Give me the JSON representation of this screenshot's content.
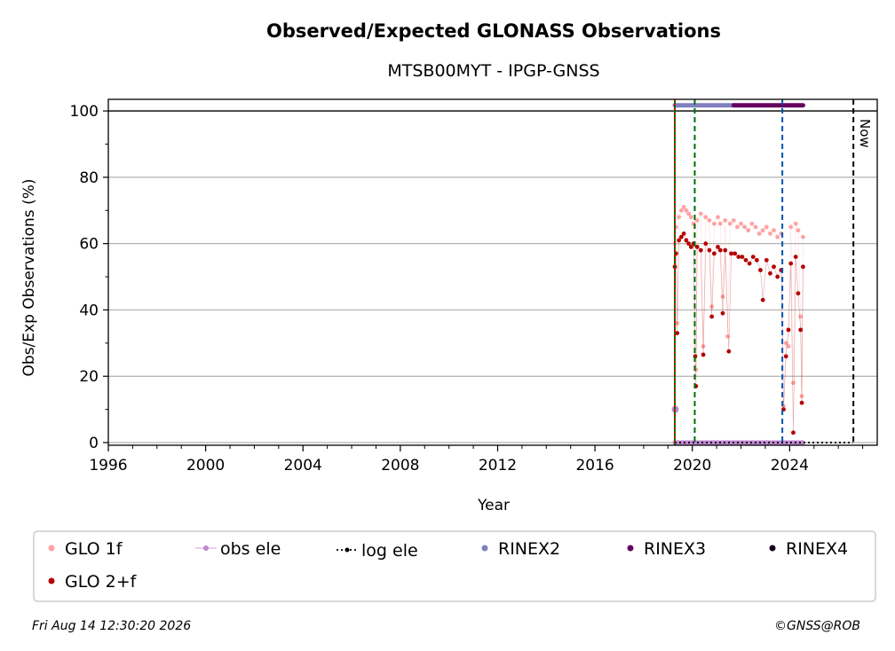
{
  "chart_data": {
    "type": "scatter",
    "title": "Observed/Expected GLONASS Observations",
    "subtitle": "MTSB00MYT - IPGP-GNSS",
    "xlabel": "Year",
    "ylabel": "Obs/Exp Observations (%)",
    "xlim": [
      1996,
      2027.6
    ],
    "ylim": [
      -0.8,
      103.5
    ],
    "x_ticks": [
      1996,
      2000,
      2004,
      2008,
      2012,
      2016,
      2020,
      2024
    ],
    "y_ticks": [
      0,
      20,
      40,
      60,
      80,
      100
    ],
    "grid": "horizontal",
    "legend_placement": "bottom",
    "series": [
      {
        "name": "GLO 1f",
        "color": "#ffa3a3",
        "marker": "dot",
        "points": [
          [
            2019.28,
            60
          ],
          [
            2019.33,
            65
          ],
          [
            2019.38,
            36
          ],
          [
            2019.45,
            68
          ],
          [
            2019.55,
            70
          ],
          [
            2019.65,
            71
          ],
          [
            2019.75,
            70
          ],
          [
            2019.85,
            69
          ],
          [
            2019.95,
            68
          ],
          [
            2020.05,
            66
          ],
          [
            2020.15,
            22
          ],
          [
            2020.2,
            67
          ],
          [
            2020.35,
            69
          ],
          [
            2020.45,
            29
          ],
          [
            2020.55,
            68
          ],
          [
            2020.7,
            67
          ],
          [
            2020.8,
            41
          ],
          [
            2020.9,
            66
          ],
          [
            2021.05,
            68
          ],
          [
            2021.15,
            66
          ],
          [
            2021.25,
            44
          ],
          [
            2021.35,
            67
          ],
          [
            2021.45,
            32
          ],
          [
            2021.55,
            66
          ],
          [
            2021.7,
            67
          ],
          [
            2021.85,
            65
          ],
          [
            2022.0,
            66
          ],
          [
            2022.15,
            65
          ],
          [
            2022.3,
            64
          ],
          [
            2022.45,
            66
          ],
          [
            2022.6,
            65
          ],
          [
            2022.75,
            63
          ],
          [
            2022.9,
            64
          ],
          [
            2023.05,
            65
          ],
          [
            2023.2,
            63
          ],
          [
            2023.35,
            64
          ],
          [
            2023.5,
            62
          ],
          [
            2023.65,
            63
          ],
          [
            2023.75,
            11
          ],
          [
            2023.85,
            30
          ],
          [
            2023.95,
            29
          ],
          [
            2024.05,
            65
          ],
          [
            2024.15,
            18
          ],
          [
            2024.25,
            66
          ],
          [
            2024.35,
            64
          ],
          [
            2024.45,
            38
          ],
          [
            2024.5,
            14
          ],
          [
            2024.55,
            62
          ]
        ]
      },
      {
        "name": "GLO 2+f",
        "color": "#b50000",
        "marker": "dot",
        "points": [
          [
            2019.28,
            53
          ],
          [
            2019.33,
            57
          ],
          [
            2019.38,
            33
          ],
          [
            2019.45,
            61
          ],
          [
            2019.55,
            62
          ],
          [
            2019.65,
            63
          ],
          [
            2019.75,
            61
          ],
          [
            2019.85,
            60
          ],
          [
            2019.95,
            59
          ],
          [
            2020.05,
            60
          ],
          [
            2020.12,
            26
          ],
          [
            2020.15,
            17
          ],
          [
            2020.2,
            59
          ],
          [
            2020.35,
            58
          ],
          [
            2020.45,
            26.5
          ],
          [
            2020.55,
            60
          ],
          [
            2020.7,
            58
          ],
          [
            2020.8,
            38
          ],
          [
            2020.9,
            57
          ],
          [
            2021.05,
            59
          ],
          [
            2021.15,
            58
          ],
          [
            2021.25,
            39
          ],
          [
            2021.35,
            58
          ],
          [
            2021.5,
            27.5
          ],
          [
            2021.6,
            57
          ],
          [
            2021.75,
            57
          ],
          [
            2021.9,
            56
          ],
          [
            2022.05,
            56
          ],
          [
            2022.2,
            55
          ],
          [
            2022.35,
            54
          ],
          [
            2022.5,
            56
          ],
          [
            2022.65,
            55
          ],
          [
            2022.8,
            52
          ],
          [
            2022.9,
            43
          ],
          [
            2023.05,
            55
          ],
          [
            2023.2,
            51
          ],
          [
            2023.35,
            53
          ],
          [
            2023.5,
            50
          ],
          [
            2023.65,
            52
          ],
          [
            2023.75,
            10
          ],
          [
            2023.85,
            26
          ],
          [
            2023.95,
            34
          ],
          [
            2024.05,
            54
          ],
          [
            2024.15,
            3
          ],
          [
            2024.25,
            56
          ],
          [
            2024.35,
            45
          ],
          [
            2024.45,
            34
          ],
          [
            2024.5,
            12
          ],
          [
            2024.55,
            53
          ]
        ]
      },
      {
        "name": "obs ele",
        "color": "#bf88d0",
        "marker": "dot-line",
        "segments": [
          {
            "x0": 2019.28,
            "x1": 2024.55,
            "y": 0
          }
        ],
        "points": [
          [
            2019.3,
            10
          ]
        ]
      },
      {
        "name": "log ele",
        "color": "#000000",
        "marker": "dotted",
        "segments": [
          {
            "x0": 2019.28,
            "x1": 2026.6,
            "y": 0
          }
        ]
      },
      {
        "name": "RINEX2",
        "color": "#8080c0",
        "marker": "dot",
        "segments": [
          {
            "x0": 2019.28,
            "x1": 2021.7,
            "y": 101.7
          }
        ]
      },
      {
        "name": "RINEX3",
        "color": "#66005e",
        "marker": "dot",
        "segments": [
          {
            "x0": 2021.7,
            "x1": 2024.55,
            "y": 101.7
          }
        ]
      },
      {
        "name": "RINEX4",
        "color": "#1a0020",
        "marker": "dot",
        "segments": []
      }
    ],
    "vertical_lines": [
      {
        "x": 2019.28,
        "color": "#006e00",
        "style": "solid"
      },
      {
        "x": 2019.28,
        "color": "#d00000",
        "style": "dotted"
      },
      {
        "x": 2020.1,
        "color": "#006e00",
        "style": "dashed"
      },
      {
        "x": 2023.7,
        "color": "#0055b0",
        "style": "dashed"
      },
      {
        "x": 2026.62,
        "color": "#000000",
        "style": "dashed",
        "label": "Now"
      }
    ],
    "reference_line": {
      "y": 100
    }
  },
  "footer": {
    "timestamp": "Fri Aug 14 12:30:20 2026",
    "credit": "©GNSS@ROB"
  }
}
